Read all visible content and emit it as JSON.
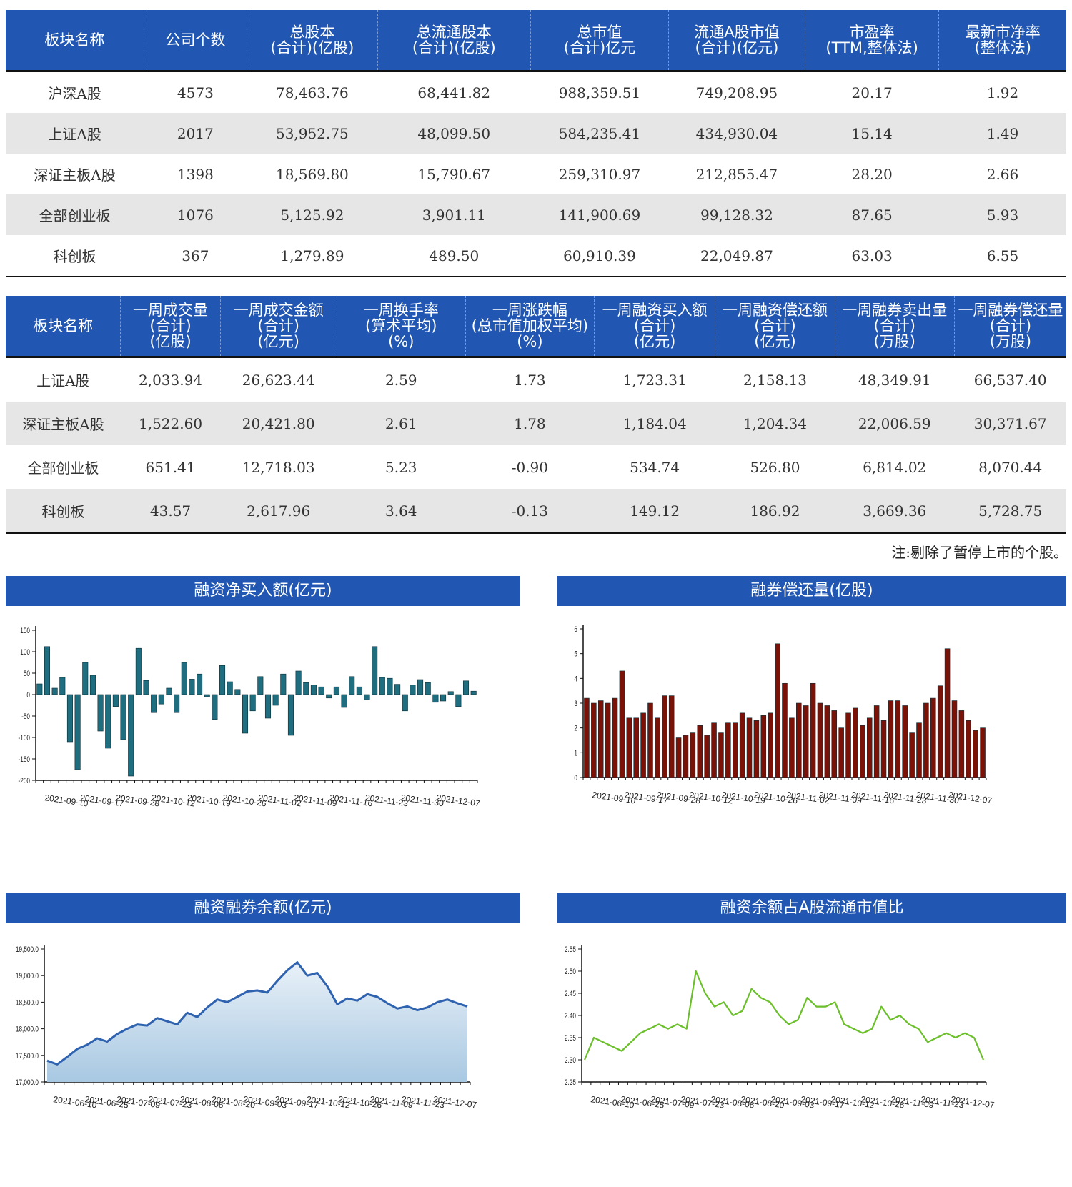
{
  "table1": {
    "headers": [
      [
        "板块名称"
      ],
      [
        "公司个数"
      ],
      [
        "总股本",
        "(合计)(亿股)"
      ],
      [
        "总流通股本",
        "(合计)(亿股)"
      ],
      [
        "总市值",
        "(合计)亿元"
      ],
      [
        "流通A股市值",
        "(合计)(亿元)"
      ],
      [
        "市盈率",
        "(TTM,整体法)"
      ],
      [
        "最新市净率",
        "(整体法)"
      ]
    ],
    "rows": [
      [
        "沪深A股",
        "4573",
        "78,463.76",
        "68,441.82",
        "988,359.51",
        "749,208.95",
        "20.17",
        "1.92"
      ],
      [
        "上证A股",
        "2017",
        "53,952.75",
        "48,099.50",
        "584,235.41",
        "434,930.04",
        "15.14",
        "1.49"
      ],
      [
        "深证主板A股",
        "1398",
        "18,569.80",
        "15,790.67",
        "259,310.97",
        "212,855.47",
        "28.20",
        "2.66"
      ],
      [
        "全部创业板",
        "1076",
        "5,125.92",
        "3,901.11",
        "141,900.69",
        "99,128.32",
        "87.65",
        "5.93"
      ],
      [
        "科创板",
        "367",
        "1,279.89",
        "489.50",
        "60,910.39",
        "22,049.87",
        "63.03",
        "6.55"
      ]
    ]
  },
  "table2": {
    "headers": [
      [
        "板块名称"
      ],
      [
        "一周成交量",
        "(合计)",
        "(亿股)"
      ],
      [
        "一周成交金额",
        "(合计)",
        "(亿元)"
      ],
      [
        "一周换手率",
        "(算术平均)",
        "(%)"
      ],
      [
        "一周涨跌幅",
        "(总市值加权平均)",
        "(%)"
      ],
      [
        "一周融资买入额",
        "(合计)",
        "(亿元)"
      ],
      [
        "一周融资偿还额",
        "(合计)",
        "(亿元)"
      ],
      [
        "一周融券卖出量",
        "(合计)",
        "(万股)"
      ],
      [
        "一周融券偿还量",
        "(合计)",
        "(万股)"
      ]
    ],
    "rows": [
      [
        "上证A股",
        "2,033.94",
        "26,623.44",
        "2.59",
        "1.73",
        "1,723.31",
        "2,158.13",
        "48,349.91",
        "66,537.40"
      ],
      [
        "深证主板A股",
        "1,522.60",
        "20,421.80",
        "2.61",
        "1.78",
        "1,184.04",
        "1,204.34",
        "22,006.59",
        "30,371.67"
      ],
      [
        "全部创业板",
        "651.41",
        "12,718.03",
        "5.23",
        "-0.90",
        "534.74",
        "526.80",
        "6,814.02",
        "8,070.44"
      ],
      [
        "科创板",
        "43.57",
        "2,617.96",
        "3.64",
        "-0.13",
        "149.12",
        "186.92",
        "3,669.36",
        "5,728.75"
      ]
    ]
  },
  "note": "注:剔除了暂停上市的个股。",
  "chart_data": [
    {
      "id": "c1",
      "type": "bar",
      "title": "融资净买入额(亿元)",
      "color": "#1f6e80",
      "ylim": [
        -200,
        150
      ],
      "yticks": [
        "150",
        "100",
        "50",
        "0",
        "-50",
        "-100",
        "-150",
        "-200"
      ],
      "ytick_values": [
        150,
        100,
        50,
        0,
        -50,
        -100,
        -150,
        -200
      ],
      "xtick_labels": [
        "2021-09-10",
        "2021-09-17",
        "2021-09-28",
        "2021-10-12",
        "2021-10-19",
        "2021-10-26",
        "2021-11-02",
        "2021-11-09",
        "2021-11-16",
        "2021-11-23",
        "2021-11-30",
        "2021-12-07"
      ],
      "values": [
        25,
        112,
        15,
        40,
        -110,
        -175,
        75,
        45,
        -85,
        -125,
        -28,
        -105,
        -190,
        108,
        33,
        -42,
        -22,
        15,
        -42,
        75,
        36,
        48,
        -5,
        -58,
        68,
        30,
        12,
        -90,
        -38,
        42,
        -55,
        -25,
        48,
        -95,
        55,
        28,
        22,
        18,
        -8,
        18,
        -30,
        42,
        18,
        -12,
        112,
        40,
        38,
        24,
        -38,
        22,
        35,
        28,
        -18,
        -15,
        7,
        -28,
        32,
        8
      ],
      "xlabel": "",
      "ylabel": ""
    },
    {
      "id": "c2",
      "type": "bar",
      "title": "融券偿还量(亿股)",
      "color": "#7a1208",
      "ylim": [
        0,
        6
      ],
      "yticks": [
        "6",
        "5",
        "4",
        "3",
        "2",
        "1",
        "0"
      ],
      "ytick_values": [
        6,
        5,
        4,
        3,
        2,
        1,
        0
      ],
      "xtick_labels": [
        "2021-09-10",
        "2021-09-17",
        "2021-09-28",
        "2021-10-12",
        "2021-10-19",
        "2021-10-26",
        "2021-11-02",
        "2021-11-09",
        "2021-11-16",
        "2021-11-23",
        "2021-11-30",
        "2021-12-07"
      ],
      "values": [
        3.2,
        3.0,
        3.1,
        3.0,
        3.2,
        4.3,
        2.4,
        2.4,
        2.6,
        3.0,
        2.4,
        3.3,
        3.3,
        1.6,
        1.7,
        1.8,
        2.1,
        1.7,
        2.2,
        1.8,
        2.2,
        2.2,
        2.6,
        2.4,
        2.3,
        2.5,
        2.6,
        5.4,
        3.8,
        2.4,
        3.0,
        2.9,
        3.8,
        3.0,
        2.9,
        2.7,
        2.0,
        2.6,
        2.8,
        2.1,
        2.4,
        2.9,
        2.3,
        3.1,
        3.1,
        2.9,
        1.8,
        2.2,
        3.0,
        3.2,
        3.7,
        5.2,
        3.1,
        2.7,
        2.3,
        1.9,
        2.0
      ],
      "xlabel": "",
      "ylabel": ""
    },
    {
      "id": "c3",
      "type": "area",
      "title": "融资融券余额(亿元)",
      "color": "#2f63b0",
      "ylim": [
        17000,
        19500
      ],
      "yticks": [
        "19,500.0",
        "19,000.0",
        "18,500.0",
        "18,000.0",
        "17,500.0",
        "17,000.0"
      ],
      "ytick_values": [
        19500,
        19000,
        18500,
        18000,
        17500,
        17000
      ],
      "xtick_labels": [
        "2021-06-10",
        "2021-06-25",
        "2021-07-09",
        "2021-07-23",
        "2021-08-06",
        "2021-08-20",
        "2021-09-03",
        "2021-09-17",
        "2021-10-12",
        "2021-10-26",
        "2021-11-09",
        "2021-11-23",
        "2021-12-07"
      ],
      "values": [
        17400,
        17330,
        17470,
        17620,
        17700,
        17820,
        17760,
        17900,
        18000,
        18080,
        18060,
        18200,
        18140,
        18080,
        18300,
        18220,
        18400,
        18550,
        18500,
        18600,
        18700,
        18720,
        18680,
        18900,
        19100,
        19250,
        19000,
        19050,
        18800,
        18460,
        18570,
        18530,
        18650,
        18600,
        18480,
        18380,
        18420,
        18350,
        18400,
        18500,
        18550,
        18480,
        18420
      ],
      "xlabel": "",
      "ylabel": ""
    },
    {
      "id": "c4",
      "type": "line",
      "title": "融资余额占A股流通市值比",
      "color": "#6abf2a",
      "ylim": [
        2.25,
        2.55
      ],
      "yticks": [
        "2.55",
        "2.50",
        "2.45",
        "2.40",
        "2.35",
        "2.30",
        "2.25"
      ],
      "ytick_values": [
        2.55,
        2.5,
        2.45,
        2.4,
        2.35,
        2.3,
        2.25
      ],
      "xtick_labels": [
        "2021-06-10",
        "2021-06-25",
        "2021-07-09",
        "2021-07-23",
        "2021-08-06",
        "2021-08-20",
        "2021-09-03",
        "2021-09-17",
        "2021-10-12",
        "2021-10-26",
        "2021-11-09",
        "2021-11-23",
        "2021-12-07"
      ],
      "values": [
        2.3,
        2.35,
        2.34,
        2.33,
        2.32,
        2.34,
        2.36,
        2.37,
        2.38,
        2.37,
        2.38,
        2.37,
        2.5,
        2.45,
        2.42,
        2.43,
        2.4,
        2.41,
        2.46,
        2.44,
        2.43,
        2.4,
        2.38,
        2.39,
        2.44,
        2.42,
        2.42,
        2.43,
        2.38,
        2.37,
        2.36,
        2.37,
        2.42,
        2.39,
        2.4,
        2.38,
        2.37,
        2.34,
        2.35,
        2.36,
        2.35,
        2.36,
        2.35,
        2.3
      ],
      "xlabel": "",
      "ylabel": ""
    }
  ]
}
